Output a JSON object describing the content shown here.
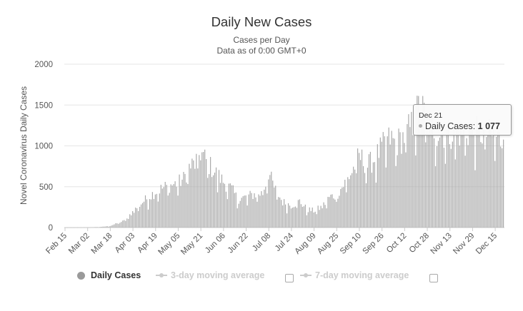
{
  "title": "Daily New Cases",
  "subtitle_line1": "Cases per Day",
  "subtitle_line2": "Data as of 0:00 GMT+0",
  "colors": {
    "bar": "#a9a9a9",
    "grid": "#e6e6e6",
    "legend_active": "#9a9a9a",
    "legend_inactive": "#cccccc"
  },
  "tooltip": {
    "date": "Dec 21",
    "series": "Daily Cases",
    "value": "1 077"
  },
  "legend": [
    {
      "label": "Daily Cases",
      "active": true,
      "icon": "circle-marker-icon"
    },
    {
      "label": "3-day moving average",
      "active": false,
      "icon": "line-marker-icon"
    },
    {
      "label": "7-day moving average",
      "active": false,
      "icon": "line-marker-icon"
    }
  ],
  "chart_data": {
    "type": "bar",
    "ylabel": "Novel Coronavirus Daily Cases",
    "ylim": [
      0,
      2000
    ],
    "yticks": [
      0,
      500,
      1000,
      1500,
      2000
    ],
    "grid": true,
    "x_start": "2020-02-15",
    "xtick_labels": [
      "Feb 15",
      "Mar 02",
      "Mar 18",
      "Apr 03",
      "Apr 19",
      "May 05",
      "May 21",
      "Jun 06",
      "Jun 22",
      "Jul 08",
      "Jul 24",
      "Aug 09",
      "Aug 25",
      "Sep 10",
      "Sep 26",
      "Oct 12",
      "Oct 28",
      "Nov 13",
      "Nov 29",
      "Dec 15"
    ],
    "series": [
      {
        "name": "Daily Cases",
        "anchors": [
          [
            "2020-02-15",
            0
          ],
          [
            "2020-03-02",
            2
          ],
          [
            "2020-03-12",
            8
          ],
          [
            "2020-03-18",
            20
          ],
          [
            "2020-03-24",
            60
          ],
          [
            "2020-03-29",
            90
          ],
          [
            "2020-04-03",
            200
          ],
          [
            "2020-04-10",
            320
          ],
          [
            "2020-04-19",
            450
          ],
          [
            "2020-04-26",
            510
          ],
          [
            "2020-05-05",
            560
          ],
          [
            "2020-05-09",
            610
          ],
          [
            "2020-05-13",
            760
          ],
          [
            "2020-05-17",
            800
          ],
          [
            "2020-05-21",
            950
          ],
          [
            "2020-05-26",
            810
          ],
          [
            "2020-06-01",
            680
          ],
          [
            "2020-06-06",
            580
          ],
          [
            "2020-06-12",
            480
          ],
          [
            "2020-06-16",
            360
          ],
          [
            "2020-06-22",
            380
          ],
          [
            "2020-06-28",
            420
          ],
          [
            "2020-07-04",
            430
          ],
          [
            "2020-07-08",
            700
          ],
          [
            "2020-07-12",
            500
          ],
          [
            "2020-07-18",
            320
          ],
          [
            "2020-07-24",
            280
          ],
          [
            "2020-07-30",
            330
          ],
          [
            "2020-08-04",
            230
          ],
          [
            "2020-08-09",
            210
          ],
          [
            "2020-08-15",
            260
          ],
          [
            "2020-08-20",
            380
          ],
          [
            "2020-08-25",
            410
          ],
          [
            "2020-08-31",
            560
          ],
          [
            "2020-09-05",
            700
          ],
          [
            "2020-09-10",
            900
          ],
          [
            "2020-09-16",
            780
          ],
          [
            "2020-09-21",
            860
          ],
          [
            "2020-09-26",
            1000
          ],
          [
            "2020-10-02",
            1120
          ],
          [
            "2020-10-06",
            1050
          ],
          [
            "2020-10-12",
            1150
          ],
          [
            "2020-10-18",
            1300
          ],
          [
            "2020-10-23",
            1540
          ],
          [
            "2020-10-28",
            1350
          ],
          [
            "2020-11-04",
            1200
          ],
          [
            "2020-11-13",
            1180
          ],
          [
            "2020-11-22",
            1200
          ],
          [
            "2020-11-29",
            1200
          ],
          [
            "2020-12-08",
            1180
          ],
          [
            "2020-12-15",
            1150
          ],
          [
            "2020-12-21",
            1077
          ]
        ],
        "highlight": [
          "2020-12-21",
          1077
        ]
      }
    ]
  }
}
